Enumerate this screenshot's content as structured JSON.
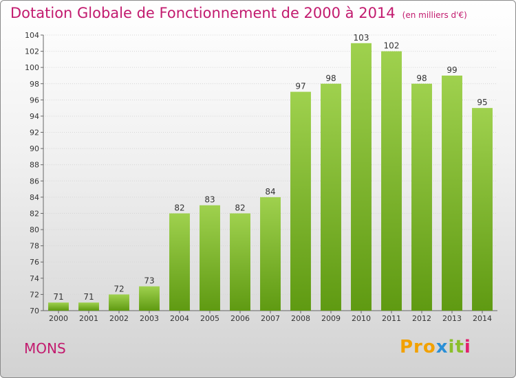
{
  "title": "Dotation Globale de Fonctionnement de 2000 à 2014",
  "subtitle": "(en milliers d'€)",
  "place": "MONS",
  "logo": {
    "text": "Proxiti",
    "part1": "Pro",
    "part2": "x",
    "part3": "it",
    "part4": "i"
  },
  "colors": {
    "title": "#c21a6e",
    "bar_light": "#9fd14e",
    "bar_dark": "#5f9a12"
  },
  "chart_data": {
    "type": "bar",
    "categories": [
      "2000",
      "2001",
      "2002",
      "2003",
      "2004",
      "2005",
      "2006",
      "2007",
      "2008",
      "2009",
      "2010",
      "2011",
      "2012",
      "2013",
      "2014"
    ],
    "values": [
      71,
      71,
      72,
      73,
      82,
      83,
      82,
      84,
      97,
      98,
      103,
      102,
      98,
      99,
      95
    ],
    "title": "Dotation Globale de Fonctionnement de 2000 à 2014",
    "ylabel": "",
    "xlabel": "",
    "ylim": [
      70,
      104
    ],
    "yticks": [
      70,
      72,
      74,
      76,
      78,
      80,
      82,
      84,
      86,
      88,
      90,
      92,
      94,
      96,
      98,
      100,
      102,
      104
    ],
    "grid": true
  }
}
